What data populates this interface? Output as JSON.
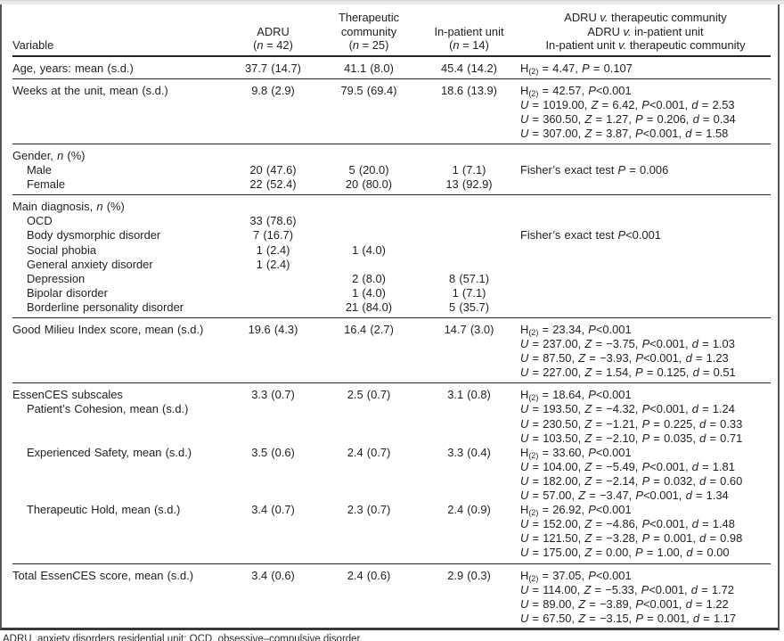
{
  "colors": {
    "background": "#ffffff",
    "text": "#1f1f1f",
    "rule": "#222222",
    "frame_border": "#555555",
    "top_strip": "#e9e9e9",
    "bottom_rule": "#3a3a3a"
  },
  "table": {
    "header": {
      "variable": "Variable",
      "col1": [
        "ADRU",
        "(n = 42)"
      ],
      "col2": [
        "Therapeutic",
        "community",
        "(n = 25)"
      ],
      "col3": [
        "In-patient unit",
        "(n = 14)"
      ],
      "comparisons": [
        "ADRU v. therapeutic community",
        "ADRU v. in-patient unit",
        "In-patient unit v. therapeutic community"
      ]
    },
    "sections": [
      {
        "rows": [
          {
            "label": "Age, years: mean (s.d.)",
            "values": [
              "37.7 (14.7)",
              "41.1 (8.0)",
              "45.4 (14.2)"
            ],
            "stats": [
              "H(2) = 4.47, P = 0.107"
            ]
          }
        ]
      },
      {
        "rows": [
          {
            "label": "Weeks at the unit, mean (s.d.)",
            "values": [
              "9.8 (2.9)",
              "79.5 (69.4)",
              "18.6 (13.9)"
            ],
            "stats": [
              "H(2) = 42.57, P<0.001",
              "U = 1019.00, Z = 6.42, P<0.001, d = 2.53",
              "U = 360.50, Z = 1.27, P = 0.206, d = 0.34",
              "U = 307.00, Z = 3.87, P<0.001, d = 1.58"
            ]
          }
        ]
      },
      {
        "rows": [
          {
            "label": "Gender, n (%)",
            "values": [
              "",
              "",
              ""
            ]
          },
          {
            "label": "Male",
            "indent": 1,
            "values": [
              "20 (47.6)",
              "5 (20.0)",
              "1 (7.1)"
            ],
            "stats": [
              "Fisher’s exact test P = 0.006"
            ]
          },
          {
            "label": "Female",
            "indent": 1,
            "values": [
              "22 (52.4)",
              "20 (80.0)",
              "13 (92.9)"
            ]
          }
        ]
      },
      {
        "rows": [
          {
            "label": "Main diagnosis, n (%)",
            "values": [
              "",
              "",
              ""
            ]
          },
          {
            "label": "OCD",
            "indent": 1,
            "values": [
              "33 (78.6)",
              "",
              ""
            ]
          },
          {
            "label": "Body dysmorphic disorder",
            "indent": 1,
            "values": [
              "7 (16.7)",
              "",
              ""
            ],
            "stats": [
              "Fisher’s exact test P<0.001"
            ]
          },
          {
            "label": "Social phobia",
            "indent": 1,
            "values": [
              "1 (2.4)",
              "1 (4.0)",
              ""
            ]
          },
          {
            "label": "General anxiety disorder",
            "indent": 1,
            "values": [
              "1 (2.4)",
              "",
              ""
            ]
          },
          {
            "label": "Depression",
            "indent": 1,
            "values": [
              "",
              "2 (8.0)",
              "8 (57.1)"
            ]
          },
          {
            "label": "Bipolar disorder",
            "indent": 1,
            "values": [
              "",
              "1 (4.0)",
              "1 (7.1)"
            ]
          },
          {
            "label": "Borderline personality disorder",
            "indent": 1,
            "values": [
              "",
              "21 (84.0)",
              "5 (35.7)"
            ]
          }
        ]
      },
      {
        "rows": [
          {
            "label": "Good Milieu Index score, mean (s.d.)",
            "values": [
              "19.6 (4.3)",
              "16.4 (2.7)",
              "14.7 (3.0)"
            ],
            "stats": [
              "H(2) = 23.34, P<0.001",
              "U = 237.00, Z = −3.75, P<0.001, d = 1.03",
              "U = 87.50, Z = −3.93, P<0.001, d = 1.23",
              "U = 227.00, Z = 1.54, P = 0.125, d = 0.51"
            ]
          }
        ]
      },
      {
        "rows": [
          {
            "label": "EssenCES subscales",
            "label2": "Patient’s Cohesion, mean (s.d.)",
            "values": [
              "3.3 (0.7)",
              "2.5 (0.7)",
              "3.1 (0.8)"
            ],
            "stats": [
              "H(2) = 18.64, P<0.001",
              "U = 193.50, Z = −4.32, P<0.001, d = 1.24",
              "U = 230.50, Z = −1.21, P = 0.225, d = 0.33",
              "U = 103.50, Z = −2.10, P = 0.035, d = 0.71"
            ]
          },
          {
            "label": "Experienced Safety, mean (s.d.)",
            "indent": 1,
            "values": [
              "3.5 (0.6)",
              "2.4 (0.7)",
              "3.3 (0.4)"
            ],
            "stats": [
              "H(2) = 33.60, P<0.001",
              "U = 104.00, Z = −5.49, P<0.001, d = 1.81",
              "U = 182.00, Z = −2.14, P = 0.032, d = 0.60",
              "U = 57.00, Z = −3.47, P<0.001, d = 1.34"
            ]
          },
          {
            "label": "Therapeutic Hold, mean (s.d.)",
            "indent": 1,
            "values": [
              "3.4 (0.7)",
              "2.3 (0.7)",
              "2.4 (0.9)"
            ],
            "stats": [
              "H(2) = 26.92, P<0.001",
              "U = 152.00, Z = −4.86, P<0.001, d = 1.48",
              "U = 121.50, Z = −3.28, P = 0.001, d = 0.98",
              "U = 175.00, Z = 0.00, P = 1.00, d = 0.00"
            ]
          }
        ]
      },
      {
        "rows": [
          {
            "label": "Total EssenCES score, mean (s.d.)",
            "values": [
              "3.4 (0.6)",
              "2.4 (0.6)",
              "2.9 (0.3)"
            ],
            "stats": [
              "H(2) = 37.05, P<0.001",
              "U = 114.00, Z = −5.33, P<0.001, d = 1.72",
              "U = 89.00, Z = −3.89, P<0.001, d = 1.22",
              "U = 67.50, Z = −3.15, P = 0.001, d = 1.17"
            ]
          }
        ]
      }
    ],
    "footnote": "ADRU, anxiety disorders residential unit; OCD, obsessive–compulsive disorder."
  }
}
